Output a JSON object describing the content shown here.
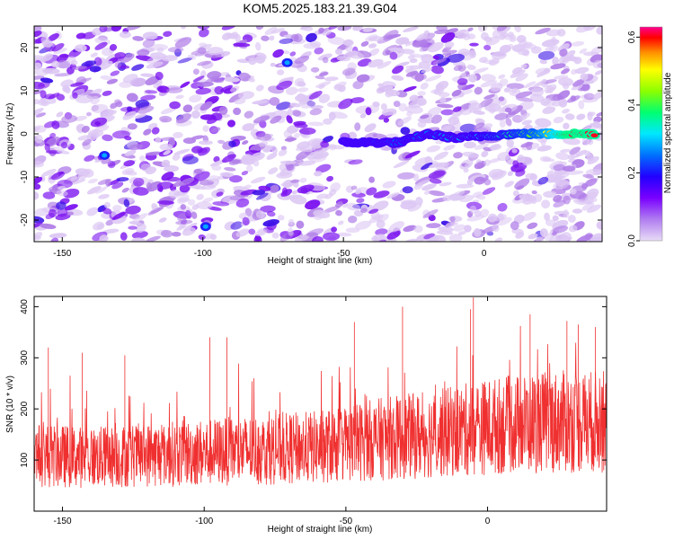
{
  "figure": {
    "title": "KOM5.2025.183.21.39.G04"
  },
  "chart_data": [
    {
      "type": "heatmap",
      "xlabel": "Height of straight line (km)",
      "ylabel": "Frequency (Hz)",
      "xlim": [
        -160,
        42
      ],
      "ylim": [
        -25,
        25
      ],
      "xticks": [
        -150,
        -100,
        -50,
        0
      ],
      "yticks": [
        -20,
        -10,
        0,
        10,
        20
      ],
      "colorbar": {
        "label": "Normalized spectral amplitude",
        "range": [
          0.0,
          0.63
        ],
        "ticks": [
          0.0,
          0.2,
          0.4,
          0.6
        ],
        "colormap": [
          "#e4d4f4",
          "#8a2be2",
          "#3a00ff",
          "#0060ff",
          "#00e0ff",
          "#00ff60",
          "#90ff00",
          "#ffff00",
          "#ff8000",
          "#ff0000",
          "#ff0080"
        ]
      },
      "trace": {
        "description_points_x": [
          -50,
          -40,
          -30,
          -20,
          -10,
          0,
          10,
          20,
          30,
          40
        ],
        "description_points_y": [
          -2.0,
          -2.0,
          -2.0,
          0.0,
          -1.0,
          -0.5,
          0.0,
          0.0,
          0.0,
          0.0
        ],
        "amplitude": [
          0.1,
          0.15,
          0.18,
          0.2,
          0.22,
          0.26,
          0.3,
          0.4,
          0.6,
          0.58
        ]
      },
      "grid": false
    },
    {
      "type": "line",
      "xlabel": "Height of straight line (km)",
      "ylabel": "SNR (10 * v/v)",
      "xlim": [
        -160,
        42
      ],
      "ylim": [
        0,
        420
      ],
      "xticks": [
        -150,
        -100,
        -50,
        0
      ],
      "yticks": [
        100,
        200,
        300,
        400
      ],
      "series": [
        {
          "color": "#f03030",
          "trend_x": [
            -160,
            -140,
            -120,
            -100,
            -80,
            -60,
            -40,
            -20,
            0,
            20,
            40
          ],
          "trend_y": [
            110,
            105,
            110,
            115,
            120,
            125,
            140,
            150,
            165,
            175,
            175
          ],
          "peaks_x": [
            -155,
            -143,
            -128,
            -98,
            -92,
            -47,
            -30,
            -6,
            -5,
            15,
            28,
            32,
            38
          ],
          "peaks_y": [
            320,
            310,
            305,
            340,
            340,
            370,
            400,
            395,
            418,
            385,
            372,
            365,
            360
          ]
        }
      ],
      "grid": false
    }
  ]
}
